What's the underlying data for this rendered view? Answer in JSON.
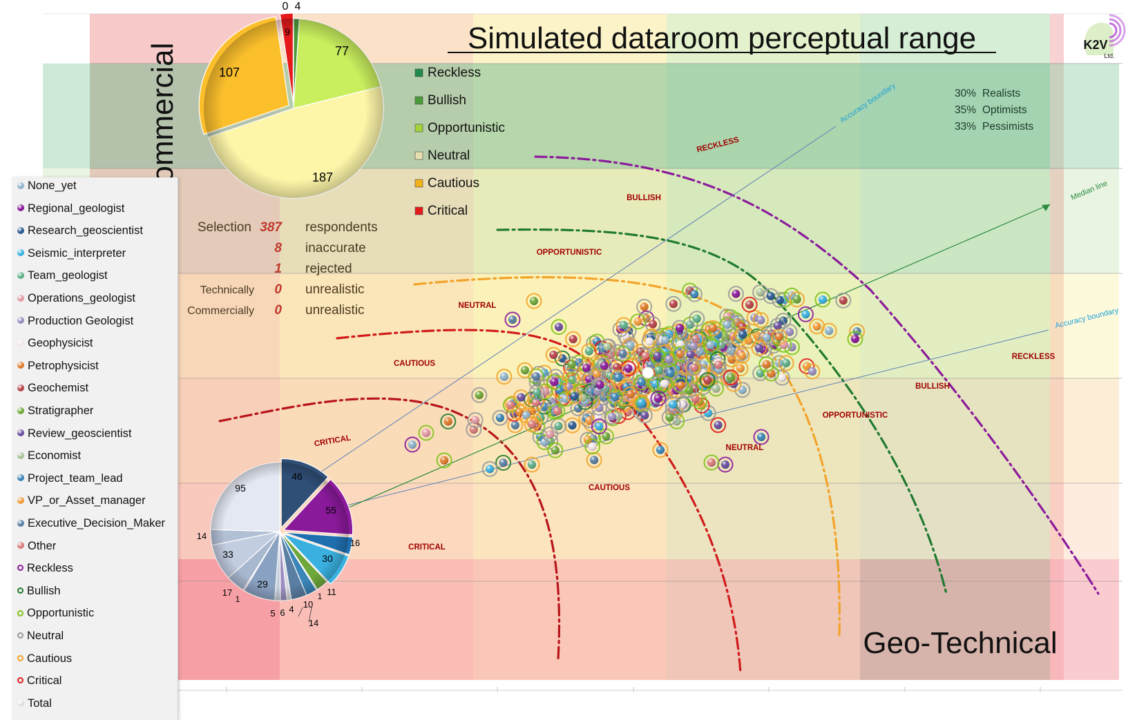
{
  "title": "Simulated dataroom perceptual range",
  "y_axis_label": "Geo-Commercial",
  "x_axis_label": "Geo-Technical",
  "logo_text": "K2V",
  "logo_sub": "Ltd.",
  "colors": {
    "reckless": "#8b1a9b",
    "bullish": "#1f7a2e",
    "opportunistic": "#7fc31c",
    "neutral": "#bdbdbd",
    "cautious": "#f2a32a",
    "critical": "#e01b1b",
    "accuracy": "#1e9fd8",
    "median": "#2b8a3e",
    "label_red": "#a00000"
  },
  "percentages": [
    {
      "value": "30%",
      "label": "Realists"
    },
    {
      "value": "35%",
      "label": "Optimists"
    },
    {
      "value": "33%",
      "label": "Pessimists"
    }
  ],
  "selection_stats": [
    {
      "prefix": "Selection",
      "value": "387",
      "label": "respondents"
    },
    {
      "prefix": "",
      "value": "8",
      "label": "inaccurate"
    },
    {
      "prefix": "",
      "value": "1",
      "label": "rejected"
    },
    {
      "prefix": "Technically",
      "value": "0",
      "label": "unrealistic"
    },
    {
      "prefix": "Commercially",
      "value": "0",
      "label": "unrealistic"
    }
  ],
  "attitude_legend": [
    "Reckless",
    "Bullish",
    "Opportunistic",
    "Neutral",
    "Cautious",
    "Critical"
  ],
  "role_legend": {
    "roles": [
      {
        "label": "None_yet",
        "color": "#8fb4cc"
      },
      {
        "label": "Regional_geologist",
        "color": "#8b1a9b"
      },
      {
        "label": "Research_geoscientist",
        "color": "#2a5a93"
      },
      {
        "label": "Seismic_interpreter",
        "color": "#3ab0e0"
      },
      {
        "label": "Team_geologist",
        "color": "#5fb08a"
      },
      {
        "label": "Operations_geologist",
        "color": "#e29aa4"
      },
      {
        "label": "Production Geologist",
        "color": "#9b8fc0"
      },
      {
        "label": "Geophysicist",
        "color": "#f2e7ea"
      },
      {
        "label": "Petrophysicist",
        "color": "#e07b2a"
      },
      {
        "label": "Geochemist",
        "color": "#b8434a"
      },
      {
        "label": "Stratigrapher",
        "color": "#6fa83a"
      },
      {
        "label": "Review_geoscientist",
        "color": "#6b4fa0"
      },
      {
        "label": "Economist",
        "color": "#a9c29a"
      },
      {
        "label": "Project_team_lead",
        "color": "#3a86b8"
      },
      {
        "label": "VP_or_Asset_manager",
        "color": "#f39a3a"
      },
      {
        "label": "Executive_Decision_Maker",
        "color": "#5a7fa3"
      },
      {
        "label": "Other",
        "color": "#d97a7a"
      }
    ],
    "rings": [
      {
        "label": "Reckless",
        "color": "#8b1a9b"
      },
      {
        "label": "Bullish",
        "color": "#1f7a2e"
      },
      {
        "label": "Opportunistic",
        "color": "#7fc31c"
      },
      {
        "label": "Neutral",
        "color": "#999999"
      },
      {
        "label": "Cautious",
        "color": "#f2a32a"
      },
      {
        "label": "Critical",
        "color": "#e01b1b"
      }
    ],
    "total_label": "Total"
  },
  "zone_labels_upper": [
    "RECKLESS",
    "BULLISH",
    "OPPORTUNISTIC",
    "NEUTRAL",
    "CAUTIOUS",
    "CRITICAL"
  ],
  "zone_labels_lower": [
    "RECKLESS",
    "BULLISH",
    "OPPORTUNISTIC",
    "NEUTRAL",
    "CAUTIOUS",
    "CRITICAL"
  ],
  "line_labels": {
    "accuracy_upper": "Accuracy boundary",
    "accuracy_lower": "Accuracy boundary",
    "median": "Median line"
  },
  "chart_data": [
    {
      "type": "pie",
      "title": "",
      "labels": [
        "Reckless",
        "Bullish",
        "Opportunistic",
        "Neutral",
        "Cautious",
        "Critical"
      ],
      "values": [
        0,
        4,
        77,
        187,
        107,
        9
      ],
      "value_labels": [
        "0",
        "4",
        "77",
        "187",
        "107",
        "9"
      ],
      "colors": [
        "#1f8a4a",
        "#4a9a3a",
        "#c9ef5e",
        "#fdf5a8",
        "#fbbf2c",
        "#e51b1b"
      ]
    },
    {
      "type": "pie",
      "title": "",
      "labels": [
        "Research_geoscientist",
        "Regional_geologist",
        "Seismic_interpreter",
        "Team_geologist",
        "Stratigrapher",
        "Economist",
        "Project_team_lead",
        "Executive_Decision_Maker",
        "Review_geoscientist",
        "Production Geologist",
        "Geophysicist",
        "Petrophysicist",
        "Geochemist",
        "Operations_geologist",
        "Other",
        "VP_or_Asset_manager",
        "None_yet"
      ],
      "values": [
        46,
        55,
        16,
        30,
        11,
        1,
        10,
        14,
        4,
        6,
        5,
        29,
        1,
        17,
        33,
        14,
        95
      ],
      "value_labels": [
        "46",
        "55",
        "16",
        "30",
        "11",
        "1",
        "10",
        "14",
        "4",
        "6",
        "5",
        "29",
        "1",
        "17",
        "33",
        "14",
        "95"
      ],
      "colors": [
        "#2f4f77",
        "#8b1a9b",
        "#1f6fb0",
        "#3ab0e0",
        "#6fa83a",
        "#a9c29a",
        "#3a86b8",
        "#5a7fa3",
        "#d8d8e0",
        "#9b8fc0",
        "#c6d0dc",
        "#8aa2c2",
        "#b8434a",
        "#a8b8cf",
        "#c2cde0",
        "#b2c0d6",
        "#e4e8f3"
      ]
    },
    {
      "type": "scatter",
      "title": "Simulated dataroom perceptual range",
      "xlabel": "Geo-Technical",
      "ylabel": "Geo-Commercial",
      "grid": true,
      "n_points": 387,
      "note": "Respondent bubble cloud; marker fill = role, ring colour = attitude"
    }
  ]
}
